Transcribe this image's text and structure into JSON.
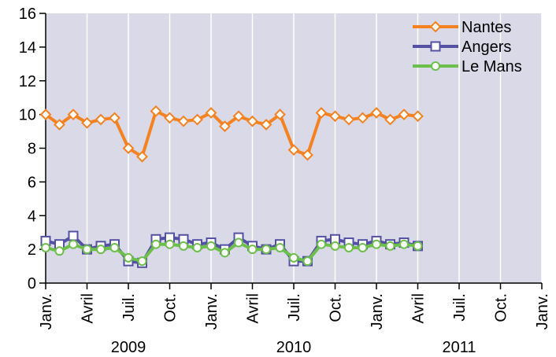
{
  "chart_data": {
    "type": "line",
    "x": [
      "2009-01",
      "2009-02",
      "2009-03",
      "2009-04",
      "2009-05",
      "2009-06",
      "2009-07",
      "2009-08",
      "2009-09",
      "2009-10",
      "2009-11",
      "2009-12",
      "2010-01",
      "2010-02",
      "2010-03",
      "2010-04",
      "2010-05",
      "2010-06",
      "2010-07",
      "2010-08",
      "2010-09",
      "2010-10",
      "2010-11",
      "2010-12",
      "2011-01",
      "2011-02",
      "2011-03",
      "2011-04"
    ],
    "series": [
      {
        "name": "Nantes",
        "color": "#f58220",
        "marker": "diamond",
        "values": [
          10.0,
          9.4,
          10.0,
          9.5,
          9.7,
          9.8,
          8.0,
          7.5,
          10.2,
          9.8,
          9.6,
          9.7,
          10.1,
          9.3,
          9.9,
          9.6,
          9.4,
          10.0,
          7.9,
          7.6,
          10.1,
          9.9,
          9.7,
          9.8,
          10.1,
          9.7,
          10.0,
          9.9
        ]
      },
      {
        "name": "Angers",
        "color": "#5450a3",
        "marker": "square",
        "values": [
          2.5,
          2.3,
          2.8,
          2.0,
          2.2,
          2.3,
          1.3,
          1.2,
          2.6,
          2.7,
          2.6,
          2.3,
          2.4,
          2.0,
          2.7,
          2.2,
          2.0,
          2.3,
          1.3,
          1.3,
          2.5,
          2.6,
          2.4,
          2.3,
          2.5,
          2.3,
          2.4,
          2.2
        ]
      },
      {
        "name": "Le Mans",
        "color": "#6dbf4b",
        "marker": "circle",
        "values": [
          2.1,
          1.9,
          2.3,
          2.0,
          2.0,
          2.1,
          1.5,
          1.3,
          2.3,
          2.3,
          2.2,
          2.1,
          2.2,
          1.8,
          2.4,
          2.0,
          2.0,
          2.1,
          1.5,
          1.3,
          2.3,
          2.2,
          2.1,
          2.1,
          2.3,
          2.2,
          2.3,
          2.2
        ]
      }
    ],
    "xlim": [
      "2009-01",
      "2012-01"
    ],
    "xticks": [
      {
        "value": "2009-01",
        "label": "Janv."
      },
      {
        "value": "2009-04",
        "label": "Avril"
      },
      {
        "value": "2009-07",
        "label": "Juil."
      },
      {
        "value": "2009-10",
        "label": "Oct."
      },
      {
        "value": "2010-01",
        "label": "Janv."
      },
      {
        "value": "2010-04",
        "label": "Avril"
      },
      {
        "value": "2010-07",
        "label": "Juil."
      },
      {
        "value": "2010-10",
        "label": "Oct."
      },
      {
        "value": "2011-01",
        "label": "Janv."
      },
      {
        "value": "2011-04",
        "label": "Avril"
      },
      {
        "value": "2011-07",
        "label": "Juil."
      },
      {
        "value": "2011-10",
        "label": "Oct."
      },
      {
        "value": "2012-01",
        "label": "Janv."
      }
    ],
    "year_labels": [
      "2009",
      "2010",
      "2011"
    ],
    "ylim": [
      0,
      16
    ],
    "yticks": [
      0,
      2,
      4,
      6,
      8,
      10,
      12,
      14,
      16
    ],
    "grid": "x",
    "legend": "top-right",
    "background": "#d9d9e8"
  }
}
